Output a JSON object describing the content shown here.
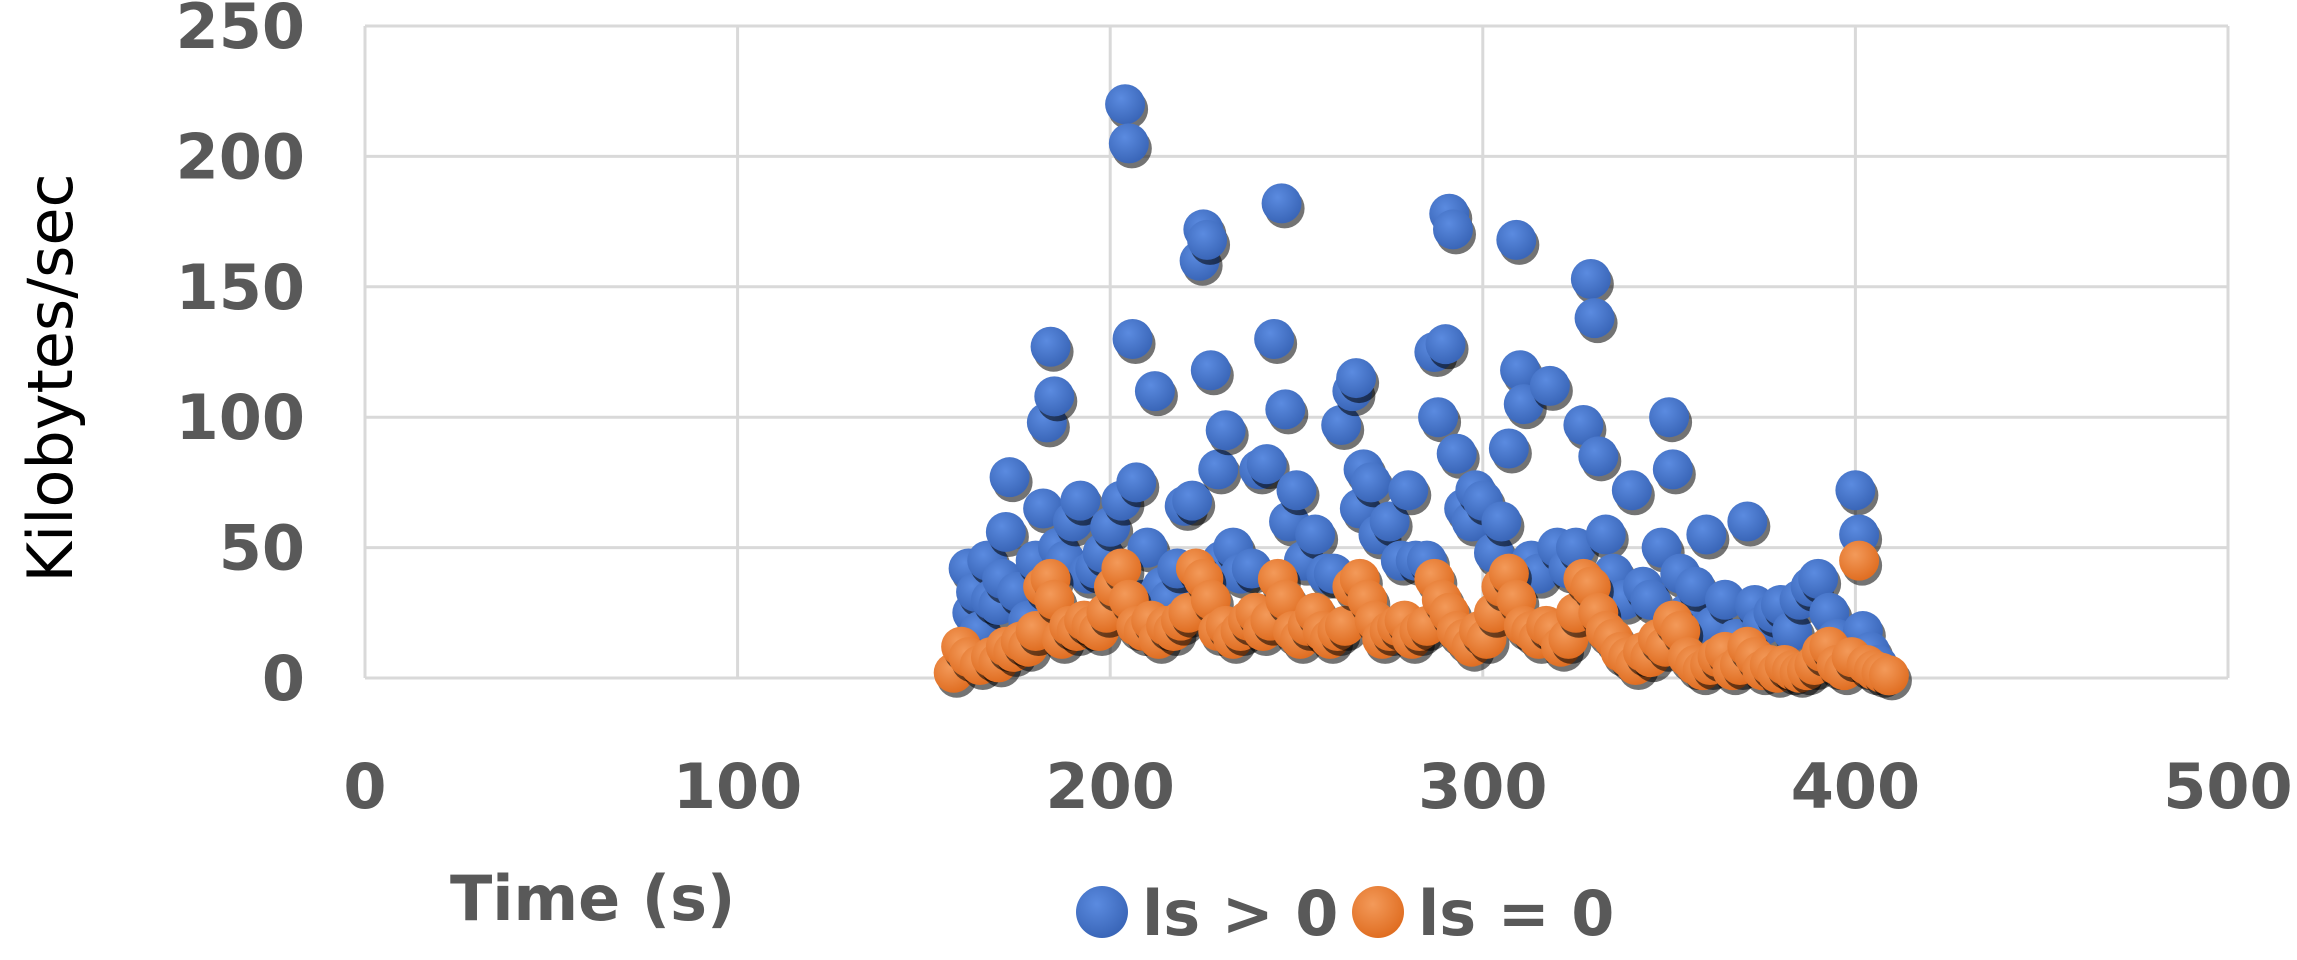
{
  "chart_data": {
    "type": "scatter",
    "title": "",
    "xlabel": "Time (s)",
    "ylabel": "Kilobytes/sec",
    "xlim": [
      0,
      500
    ],
    "ylim": [
      0,
      250
    ],
    "x_ticks": [
      "0",
      "100",
      "200",
      "300",
      "400",
      "500"
    ],
    "y_ticks": [
      "0",
      "50",
      "100",
      "150",
      "200",
      "250"
    ],
    "grid": true,
    "legend_position": "bottom",
    "colors": {
      "ls_gt_0": "#4472C4",
      "ls_eq_0": "#ED7D31",
      "grid": "#D9D9D9",
      "text": "#595959"
    },
    "series": [
      {
        "name": "ls > 0",
        "color": "#4472C4",
        "points": [
          [
            162,
            42
          ],
          [
            163,
            25
          ],
          [
            164,
            33
          ],
          [
            165,
            18
          ],
          [
            167,
            45
          ],
          [
            168,
            30
          ],
          [
            170,
            28
          ],
          [
            171,
            38
          ],
          [
            172,
            56
          ],
          [
            173,
            77
          ],
          [
            175,
            33
          ],
          [
            178,
            22
          ],
          [
            180,
            45
          ],
          [
            182,
            65
          ],
          [
            183,
            98
          ],
          [
            184,
            127
          ],
          [
            185,
            108
          ],
          [
            186,
            50
          ],
          [
            188,
            45
          ],
          [
            190,
            60
          ],
          [
            192,
            68
          ],
          [
            194,
            40
          ],
          [
            196,
            42
          ],
          [
            198,
            48
          ],
          [
            200,
            58
          ],
          [
            203,
            68
          ],
          [
            204,
            220
          ],
          [
            205,
            205
          ],
          [
            206,
            130
          ],
          [
            207,
            75
          ],
          [
            209,
            30
          ],
          [
            210,
            50
          ],
          [
            212,
            110
          ],
          [
            214,
            35
          ],
          [
            216,
            30
          ],
          [
            218,
            42
          ],
          [
            220,
            66
          ],
          [
            222,
            68
          ],
          [
            224,
            160
          ],
          [
            225,
            172
          ],
          [
            226,
            168
          ],
          [
            227,
            118
          ],
          [
            229,
            80
          ],
          [
            230,
            45
          ],
          [
            231,
            95
          ],
          [
            233,
            50
          ],
          [
            235,
            40
          ],
          [
            238,
            42
          ],
          [
            240,
            80
          ],
          [
            242,
            82
          ],
          [
            244,
            130
          ],
          [
            246,
            182
          ],
          [
            247,
            103
          ],
          [
            248,
            60
          ],
          [
            250,
            72
          ],
          [
            252,
            45
          ],
          [
            255,
            55
          ],
          [
            258,
            40
          ],
          [
            260,
            40
          ],
          [
            262,
            97
          ],
          [
            265,
            110
          ],
          [
            266,
            115
          ],
          [
            267,
            65
          ],
          [
            268,
            80
          ],
          [
            270,
            75
          ],
          [
            272,
            55
          ],
          [
            275,
            60
          ],
          [
            278,
            45
          ],
          [
            280,
            72
          ],
          [
            282,
            45
          ],
          [
            285,
            45
          ],
          [
            287,
            125
          ],
          [
            288,
            100
          ],
          [
            290,
            128
          ],
          [
            291,
            178
          ],
          [
            292,
            172
          ],
          [
            293,
            86
          ],
          [
            295,
            65
          ],
          [
            297,
            60
          ],
          [
            298,
            72
          ],
          [
            300,
            68
          ],
          [
            303,
            48
          ],
          [
            305,
            60
          ],
          [
            307,
            88
          ],
          [
            309,
            168
          ],
          [
            310,
            118
          ],
          [
            311,
            105
          ],
          [
            313,
            45
          ],
          [
            315,
            40
          ],
          [
            318,
            112
          ],
          [
            320,
            50
          ],
          [
            323,
            42
          ],
          [
            325,
            50
          ],
          [
            327,
            97
          ],
          [
            329,
            153
          ],
          [
            330,
            138
          ],
          [
            331,
            85
          ],
          [
            333,
            55
          ],
          [
            335,
            40
          ],
          [
            338,
            30
          ],
          [
            340,
            72
          ],
          [
            343,
            35
          ],
          [
            345,
            30
          ],
          [
            348,
            50
          ],
          [
            350,
            100
          ],
          [
            351,
            80
          ],
          [
            353,
            40
          ],
          [
            355,
            25
          ],
          [
            357,
            35
          ],
          [
            360,
            55
          ],
          [
            362,
            20
          ],
          [
            365,
            30
          ],
          [
            368,
            15
          ],
          [
            371,
            60
          ],
          [
            373,
            28
          ],
          [
            375,
            20
          ],
          [
            378,
            25
          ],
          [
            380,
            28
          ],
          [
            383,
            18
          ],
          [
            385,
            30
          ],
          [
            388,
            35
          ],
          [
            390,
            38
          ],
          [
            393,
            25
          ],
          [
            395,
            15
          ],
          [
            398,
            10
          ],
          [
            400,
            72
          ],
          [
            401,
            55
          ],
          [
            402,
            18
          ],
          [
            404,
            10
          ],
          [
            406,
            5
          ]
        ]
      },
      {
        "name": "ls = 0",
        "color": "#ED7D31",
        "points": [
          [
            158,
            2
          ],
          [
            160,
            12
          ],
          [
            162,
            8
          ],
          [
            165,
            5
          ],
          [
            168,
            8
          ],
          [
            170,
            6
          ],
          [
            172,
            12
          ],
          [
            174,
            10
          ],
          [
            176,
            14
          ],
          [
            178,
            12
          ],
          [
            180,
            18
          ],
          [
            182,
            35
          ],
          [
            184,
            38
          ],
          [
            185,
            30
          ],
          [
            187,
            15
          ],
          [
            189,
            20
          ],
          [
            191,
            18
          ],
          [
            193,
            22
          ],
          [
            195,
            20
          ],
          [
            197,
            18
          ],
          [
            199,
            25
          ],
          [
            201,
            35
          ],
          [
            203,
            42
          ],
          [
            205,
            30
          ],
          [
            207,
            20
          ],
          [
            209,
            18
          ],
          [
            211,
            22
          ],
          [
            213,
            15
          ],
          [
            215,
            20
          ],
          [
            217,
            18
          ],
          [
            219,
            22
          ],
          [
            221,
            25
          ],
          [
            223,
            42
          ],
          [
            225,
            38
          ],
          [
            227,
            30
          ],
          [
            229,
            18
          ],
          [
            231,
            20
          ],
          [
            233,
            15
          ],
          [
            235,
            18
          ],
          [
            237,
            22
          ],
          [
            239,
            25
          ],
          [
            241,
            18
          ],
          [
            243,
            22
          ],
          [
            245,
            38
          ],
          [
            247,
            30
          ],
          [
            249,
            18
          ],
          [
            251,
            15
          ],
          [
            253,
            20
          ],
          [
            255,
            25
          ],
          [
            257,
            18
          ],
          [
            259,
            15
          ],
          [
            261,
            18
          ],
          [
            263,
            20
          ],
          [
            265,
            35
          ],
          [
            267,
            38
          ],
          [
            269,
            30
          ],
          [
            271,
            22
          ],
          [
            273,
            15
          ],
          [
            275,
            18
          ],
          [
            277,
            20
          ],
          [
            279,
            22
          ],
          [
            281,
            15
          ],
          [
            283,
            18
          ],
          [
            285,
            20
          ],
          [
            287,
            38
          ],
          [
            289,
            30
          ],
          [
            291,
            25
          ],
          [
            293,
            18
          ],
          [
            295,
            15
          ],
          [
            297,
            12
          ],
          [
            299,
            18
          ],
          [
            301,
            15
          ],
          [
            303,
            25
          ],
          [
            305,
            35
          ],
          [
            307,
            40
          ],
          [
            309,
            30
          ],
          [
            311,
            20
          ],
          [
            313,
            18
          ],
          [
            315,
            15
          ],
          [
            317,
            20
          ],
          [
            319,
            18
          ],
          [
            321,
            12
          ],
          [
            323,
            15
          ],
          [
            325,
            25
          ],
          [
            327,
            38
          ],
          [
            329,
            35
          ],
          [
            331,
            25
          ],
          [
            333,
            18
          ],
          [
            335,
            15
          ],
          [
            337,
            10
          ],
          [
            339,
            8
          ],
          [
            341,
            5
          ],
          [
            343,
            10
          ],
          [
            345,
            8
          ],
          [
            347,
            15
          ],
          [
            349,
            12
          ],
          [
            351,
            22
          ],
          [
            353,
            18
          ],
          [
            355,
            8
          ],
          [
            357,
            5
          ],
          [
            359,
            3
          ],
          [
            361,
            5
          ],
          [
            363,
            8
          ],
          [
            365,
            10
          ],
          [
            367,
            3
          ],
          [
            369,
            5
          ],
          [
            371,
            12
          ],
          [
            373,
            8
          ],
          [
            375,
            3
          ],
          [
            377,
            5
          ],
          [
            379,
            2
          ],
          [
            381,
            5
          ],
          [
            383,
            3
          ],
          [
            385,
            2
          ],
          [
            387,
            3
          ],
          [
            389,
            5
          ],
          [
            391,
            10
          ],
          [
            393,
            12
          ],
          [
            395,
            5
          ],
          [
            397,
            3
          ],
          [
            399,
            8
          ],
          [
            401,
            45
          ],
          [
            403,
            5
          ],
          [
            405,
            3
          ],
          [
            407,
            2
          ],
          [
            409,
            1
          ]
        ]
      }
    ]
  }
}
